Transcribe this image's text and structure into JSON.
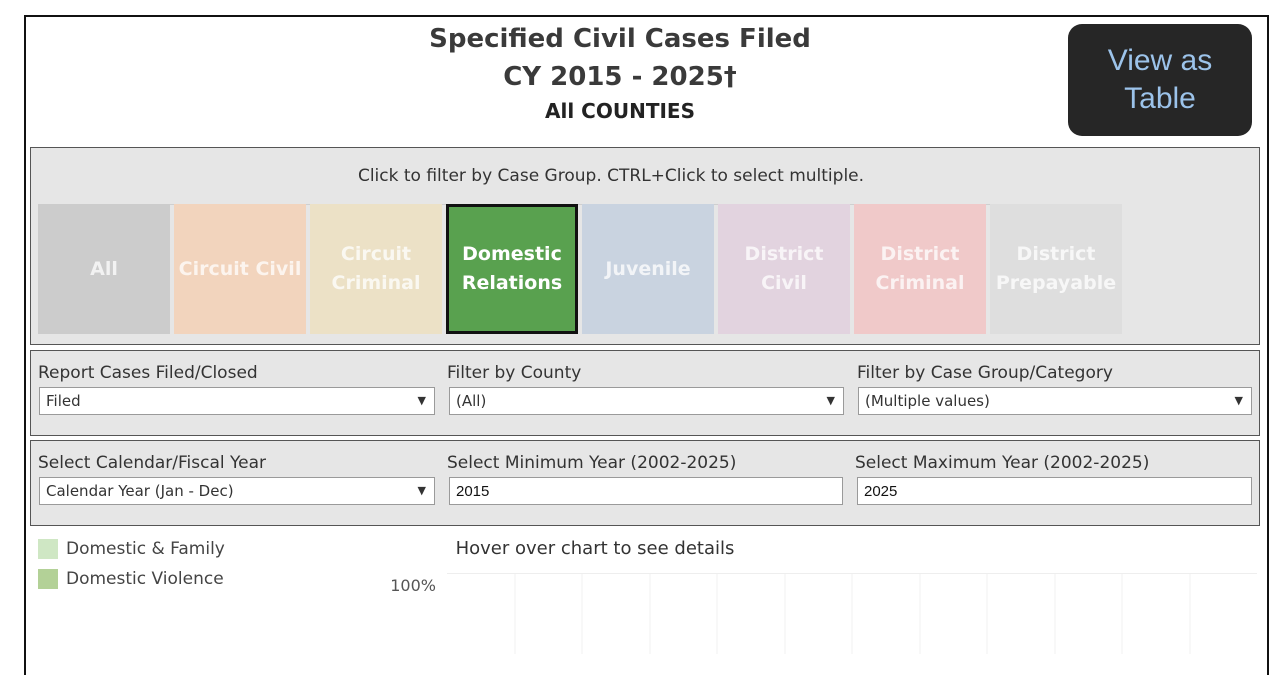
{
  "header": {
    "title_line1": "Specified Civil Cases Filed",
    "title_line2": "CY 2015 - 2025†",
    "title_line3": "All COUNTIES",
    "view_table_label": "View as Table"
  },
  "case_group": {
    "hint": "Click to filter by Case Group. CTRL+Click to select multiple.",
    "tiles": [
      {
        "label": "All",
        "color": "#cccccc"
      },
      {
        "label": "Circuit Civil",
        "color": "#f2d4bd"
      },
      {
        "label": "Circuit Criminal",
        "color": "#ece1c6"
      },
      {
        "label": "Domestic Relations",
        "color": "#59a14f"
      },
      {
        "label": "Juvenile",
        "color": "#c9d3e0"
      },
      {
        "label": "District Civil",
        "color": "#e2d3df"
      },
      {
        "label": "District Criminal",
        "color": "#f0c9c9"
      },
      {
        "label": "District Prepayable",
        "color": "#dedede"
      }
    ]
  },
  "filters": {
    "report_label": "Report Cases Filed/Closed",
    "report_value": "Filed",
    "county_label": "Filter by County",
    "county_value": "(All)",
    "category_label": "Filter by Case Group/Category",
    "category_value": "(Multiple values)",
    "year_type_label": "Select Calendar/Fiscal Year",
    "year_type_value": "Calendar Year (Jan - Dec)",
    "min_year_label": "Select Minimum Year (2002-2025)",
    "min_year_value": "2015",
    "max_year_label": "Select Maximum Year (2002-2025)",
    "max_year_value": "2025"
  },
  "legend": [
    {
      "label": "Domestic & Family",
      "color": "#cfe7c4"
    },
    {
      "label": "Domestic Violence",
      "color": "#b3d197"
    }
  ],
  "chart": {
    "hover_hint": "Hover over chart to see details",
    "y_tick_top": "100%"
  }
}
